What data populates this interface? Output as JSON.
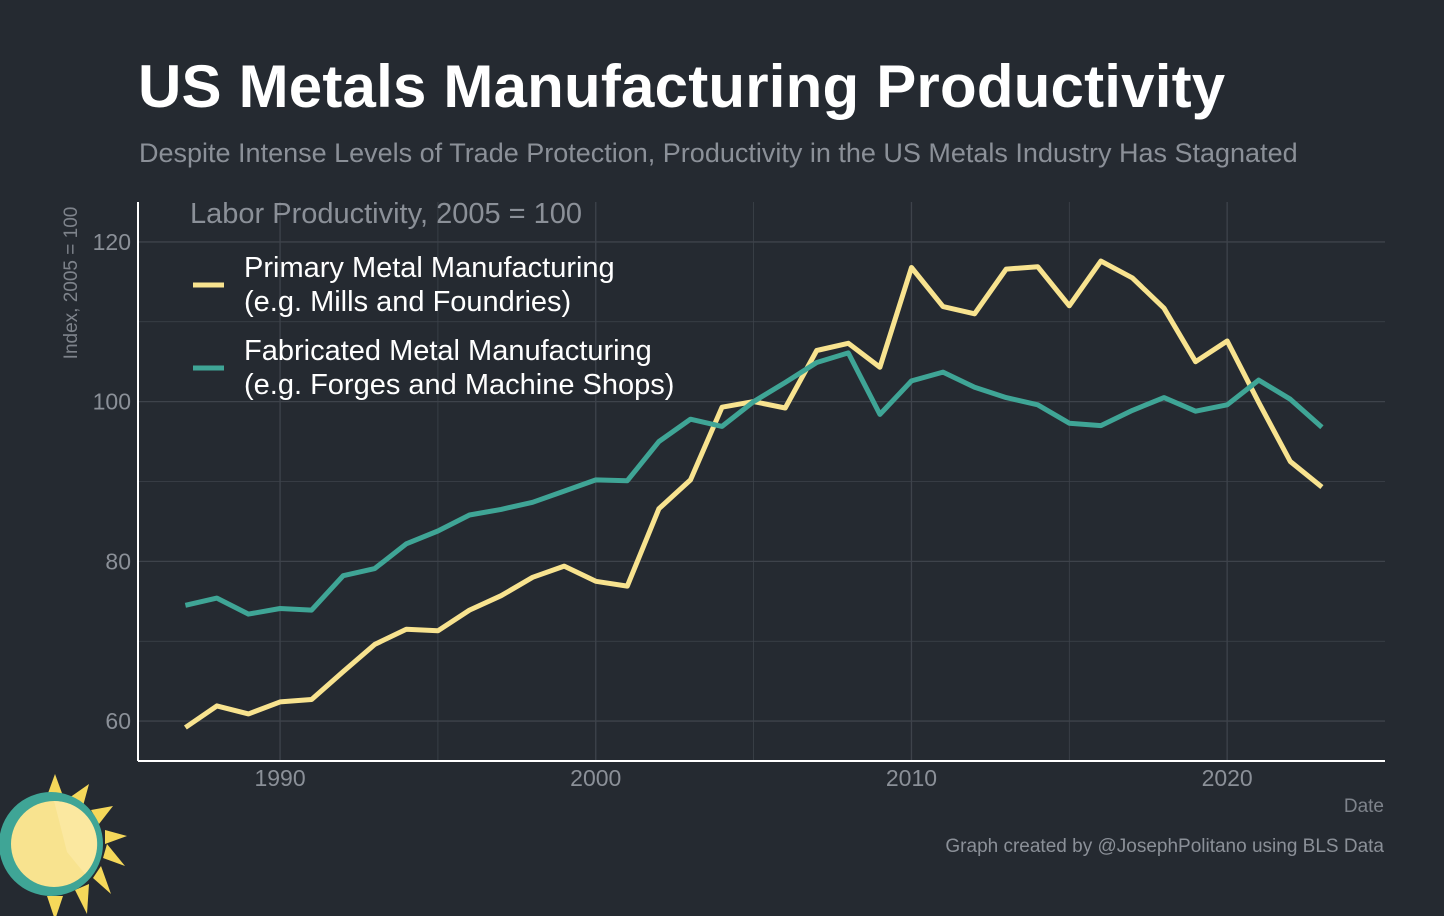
{
  "title": "US Metals Manufacturing Productivity",
  "subtitle": "Despite Intense Levels of Trade Protection, Productivity in the US Metals Industry Has Stagnated",
  "credit": "Graph created by @JosephPolitano using BLS Data",
  "colors": {
    "background": "#252a31",
    "primary": "#f8e38f",
    "fabricated": "#3fa596",
    "grid": "#3e434b",
    "axis": "#ffffff"
  },
  "logo_icon": "sun-icon",
  "chart_data": {
    "type": "line",
    "label": "Labor Productivity, 2005 = 100",
    "xlabel": "Date",
    "ylabel": "Index, 2005 = 100",
    "xlim": [
      1985.5,
      2025
    ],
    "ylim": [
      55,
      125
    ],
    "xticks": [
      1990,
      2000,
      2010,
      2020
    ],
    "yticks": [
      60,
      80,
      100,
      120
    ],
    "grid": true,
    "legend_position": "top-left",
    "x": [
      1987,
      1988,
      1989,
      1990,
      1991,
      1992,
      1993,
      1994,
      1995,
      1996,
      1997,
      1998,
      1999,
      2000,
      2001,
      2002,
      2003,
      2004,
      2005,
      2006,
      2007,
      2008,
      2009,
      2010,
      2011,
      2012,
      2013,
      2014,
      2015,
      2016,
      2017,
      2018,
      2019,
      2020,
      2021,
      2022,
      2023
    ],
    "series": [
      {
        "name_line1": "Primary Metal Manufacturing",
        "name_line2": "(e.g. Mills and Foundries)",
        "color": "#f8e38f",
        "values": [
          59.2,
          61.9,
          60.9,
          62.4,
          62.7,
          66.2,
          69.6,
          71.5,
          71.3,
          73.9,
          75.7,
          78.0,
          79.4,
          77.5,
          76.9,
          86.6,
          90.2,
          99.3,
          100.0,
          99.2,
          106.4,
          107.3,
          104.3,
          116.8,
          111.9,
          111.0,
          116.6,
          116.9,
          112.0,
          117.6,
          115.5,
          111.7,
          105.0,
          107.6,
          99.9,
          92.5,
          89.3
        ]
      },
      {
        "name_line1": "Fabricated Metal Manufacturing",
        "name_line2": "(e.g. Forges and Machine Shops)",
        "color": "#3fa596",
        "values": [
          74.5,
          75.4,
          73.4,
          74.1,
          73.9,
          78.2,
          79.1,
          82.2,
          83.8,
          85.8,
          86.5,
          87.4,
          88.8,
          90.2,
          90.1,
          95.0,
          97.8,
          96.9,
          100.0,
          102.4,
          104.9,
          106.1,
          98.4,
          102.6,
          103.7,
          101.8,
          100.5,
          99.6,
          97.3,
          97.0,
          98.9,
          100.5,
          98.8,
          99.6,
          102.7,
          100.3,
          96.8
        ]
      }
    ]
  }
}
